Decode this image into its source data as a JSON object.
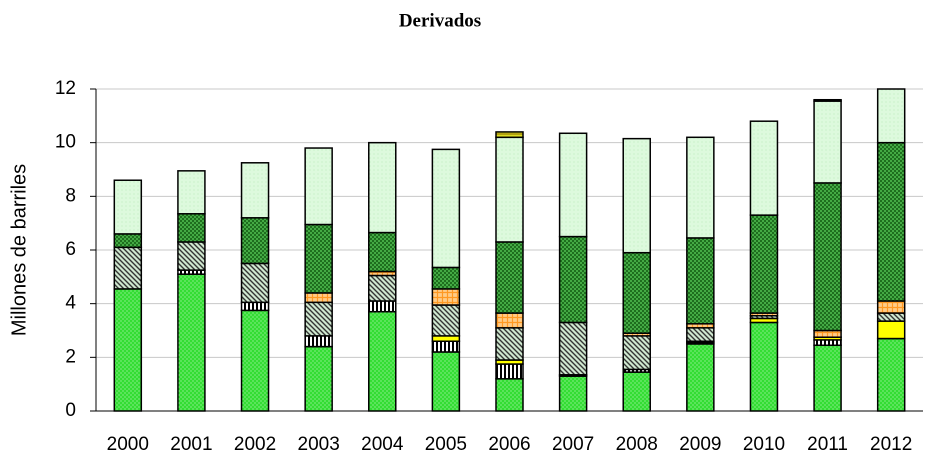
{
  "chart_data": {
    "type": "bar",
    "stacked": true,
    "title": "Derivados",
    "y_label": "Millones de barriles",
    "categories": [
      "2000",
      "2001",
      "2002",
      "2003",
      "2004",
      "2005",
      "2006",
      "2007",
      "2008",
      "2009",
      "2010",
      "2011",
      "2012"
    ],
    "series": [
      {
        "color": "#33dd33",
        "values": [
          4.55,
          5.1,
          3.75,
          2.4,
          3.7,
          2.2,
          1.2,
          1.3,
          1.45,
          2.5,
          3.3,
          2.45,
          2.7
        ]
      },
      {
        "color": "#ffffff",
        "values": [
          0,
          0.15,
          0.3,
          0.4,
          0.4,
          0.4,
          0.55,
          0.05,
          0.1,
          0.05,
          0,
          0.2,
          0
        ]
      },
      {
        "color": "#ffff00",
        "values": [
          0,
          0,
          0,
          0,
          0,
          0.2,
          0.15,
          0,
          0,
          0.05,
          0.15,
          0.1,
          0.65
        ]
      },
      {
        "color": "#cfe8cf",
        "values": [
          1.55,
          1.05,
          1.45,
          1.25,
          0.95,
          1.15,
          1.2,
          1.95,
          1.25,
          0.5,
          0.1,
          0,
          0.3
        ]
      },
      {
        "color": "#ffcc88",
        "values": [
          0,
          0,
          0,
          0.35,
          0.15,
          0.6,
          0.55,
          0,
          0.1,
          0.15,
          0.1,
          0.25,
          0.45
        ]
      },
      {
        "color": "#44aa44",
        "values": [
          0.5,
          1.05,
          1.7,
          2.55,
          1.45,
          0.8,
          2.65,
          3.2,
          3.0,
          3.2,
          3.65,
          5.5,
          5.9
        ]
      },
      {
        "color": "#ddfadd",
        "values": [
          2.0,
          1.6,
          2.05,
          2.85,
          3.35,
          4.4,
          3.9,
          3.85,
          4.25,
          3.75,
          3.5,
          3.05,
          2.0
        ]
      },
      {
        "color": "#dddd22",
        "values": [
          0,
          0,
          0,
          0,
          0,
          0,
          0.2,
          0,
          0,
          0,
          0,
          0.05,
          0
        ]
      }
    ],
    "ylim": [
      0,
      12
    ],
    "yticks": [
      0,
      2,
      4,
      6,
      8,
      10,
      12
    ],
    "grid": true
  }
}
